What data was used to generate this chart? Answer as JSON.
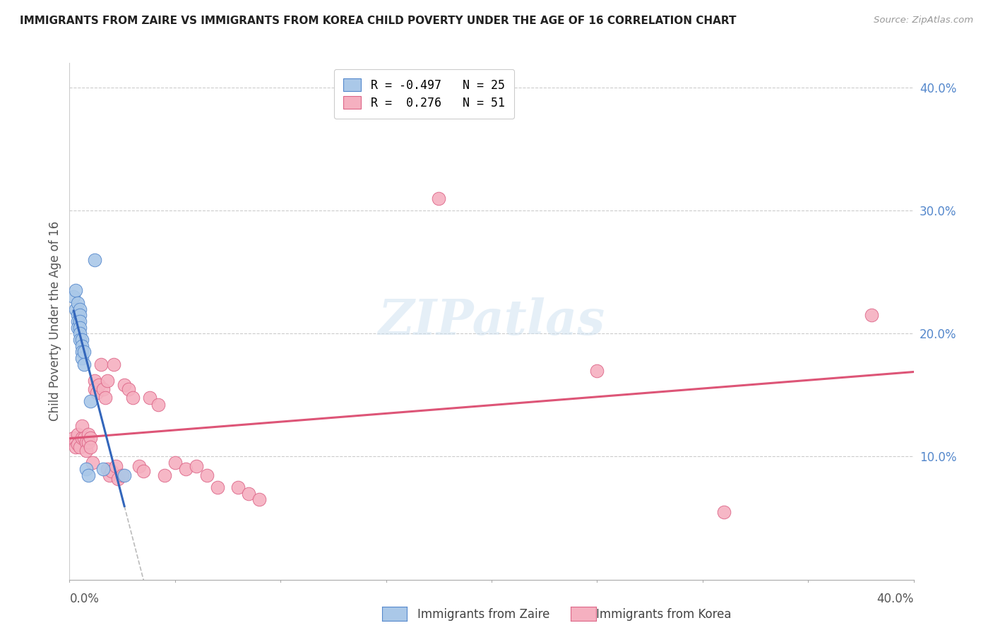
{
  "title": "IMMIGRANTS FROM ZAIRE VS IMMIGRANTS FROM KOREA CHILD POVERTY UNDER THE AGE OF 16 CORRELATION CHART",
  "source": "Source: ZipAtlas.com",
  "ylabel": "Child Poverty Under the Age of 16",
  "xlim": [
    0.0,
    0.4
  ],
  "ylim": [
    0.0,
    0.42
  ],
  "yticks": [
    0.1,
    0.2,
    0.3,
    0.4
  ],
  "ytick_labels": [
    "10.0%",
    "20.0%",
    "30.0%",
    "40.0%"
  ],
  "background_color": "#ffffff",
  "zaire_color": "#aac8e8",
  "zaire_edge": "#5588cc",
  "korea_color": "#f5b0c0",
  "korea_edge": "#dd6688",
  "zaire_trendline_color": "#3366bb",
  "korea_trendline_color": "#dd5577",
  "dashed_trendline_color": "#bbbbbb",
  "right_tick_color": "#5588cc",
  "legend_label_zaire": "R = -0.497   N = 25",
  "legend_label_korea": "R =  0.276   N = 51",
  "zaire_points": [
    [
      0.002,
      0.23
    ],
    [
      0.003,
      0.235
    ],
    [
      0.003,
      0.22
    ],
    [
      0.004,
      0.225
    ],
    [
      0.004,
      0.215
    ],
    [
      0.004,
      0.21
    ],
    [
      0.004,
      0.205
    ],
    [
      0.005,
      0.22
    ],
    [
      0.005,
      0.215
    ],
    [
      0.005,
      0.21
    ],
    [
      0.005,
      0.205
    ],
    [
      0.005,
      0.2
    ],
    [
      0.005,
      0.195
    ],
    [
      0.006,
      0.195
    ],
    [
      0.006,
      0.19
    ],
    [
      0.006,
      0.185
    ],
    [
      0.006,
      0.18
    ],
    [
      0.007,
      0.185
    ],
    [
      0.007,
      0.175
    ],
    [
      0.008,
      0.09
    ],
    [
      0.009,
      0.085
    ],
    [
      0.01,
      0.145
    ],
    [
      0.012,
      0.26
    ],
    [
      0.016,
      0.09
    ],
    [
      0.026,
      0.085
    ]
  ],
  "korea_points": [
    [
      0.002,
      0.115
    ],
    [
      0.003,
      0.112
    ],
    [
      0.003,
      0.108
    ],
    [
      0.004,
      0.118
    ],
    [
      0.004,
      0.11
    ],
    [
      0.005,
      0.108
    ],
    [
      0.006,
      0.115
    ],
    [
      0.006,
      0.125
    ],
    [
      0.007,
      0.115
    ],
    [
      0.008,
      0.112
    ],
    [
      0.008,
      0.105
    ],
    [
      0.009,
      0.118
    ],
    [
      0.009,
      0.112
    ],
    [
      0.01,
      0.115
    ],
    [
      0.01,
      0.108
    ],
    [
      0.011,
      0.095
    ],
    [
      0.012,
      0.162
    ],
    [
      0.012,
      0.155
    ],
    [
      0.013,
      0.152
    ],
    [
      0.014,
      0.158
    ],
    [
      0.015,
      0.175
    ],
    [
      0.016,
      0.155
    ],
    [
      0.017,
      0.148
    ],
    [
      0.018,
      0.09
    ],
    [
      0.018,
      0.162
    ],
    [
      0.019,
      0.085
    ],
    [
      0.02,
      0.088
    ],
    [
      0.021,
      0.175
    ],
    [
      0.022,
      0.092
    ],
    [
      0.023,
      0.082
    ],
    [
      0.025,
      0.085
    ],
    [
      0.026,
      0.158
    ],
    [
      0.028,
      0.155
    ],
    [
      0.03,
      0.148
    ],
    [
      0.033,
      0.092
    ],
    [
      0.035,
      0.088
    ],
    [
      0.038,
      0.148
    ],
    [
      0.042,
      0.142
    ],
    [
      0.045,
      0.085
    ],
    [
      0.05,
      0.095
    ],
    [
      0.055,
      0.09
    ],
    [
      0.06,
      0.092
    ],
    [
      0.065,
      0.085
    ],
    [
      0.07,
      0.075
    ],
    [
      0.08,
      0.075
    ],
    [
      0.085,
      0.07
    ],
    [
      0.09,
      0.065
    ],
    [
      0.175,
      0.31
    ],
    [
      0.25,
      0.17
    ],
    [
      0.31,
      0.055
    ],
    [
      0.38,
      0.215
    ]
  ]
}
